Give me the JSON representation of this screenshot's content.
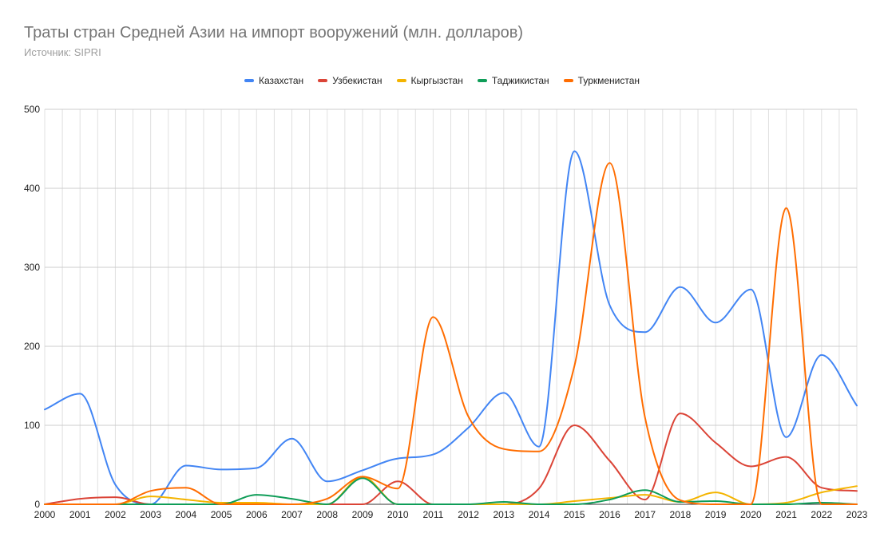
{
  "chart_data": {
    "type": "line",
    "title": "Траты стран Средней Азии на импорт вооружений (млн. долларов)",
    "subtitle": "Источник: SIPRI",
    "xlabel": "",
    "ylabel": "",
    "ylim": [
      0,
      500
    ],
    "yticks": [
      0,
      100,
      200,
      300,
      400,
      500
    ],
    "grid": true,
    "legend_position": "top",
    "categories": [
      "2000",
      "2001",
      "2002",
      "2003",
      "2004",
      "2005",
      "2006",
      "2007",
      "2008",
      "2009",
      "2010",
      "2011",
      "2012",
      "2013",
      "2014",
      "2015",
      "2016",
      "2017",
      "2018",
      "2019",
      "2020",
      "2021",
      "2022",
      "2023"
    ],
    "series": [
      {
        "name": "Казахстан",
        "color": "#4285f4",
        "values": [
          120,
          140,
          25,
          0,
          49,
          44,
          46,
          83,
          29,
          43,
          58,
          63,
          97,
          141,
          73,
          447,
          252,
          218,
          275,
          230,
          272,
          85,
          189,
          125
        ]
      },
      {
        "name": "Узбекистан",
        "color": "#db4437",
        "values": [
          0,
          7,
          9,
          0,
          0,
          0,
          0,
          0,
          0,
          0,
          29,
          0,
          0,
          0,
          20,
          100,
          55,
          6,
          115,
          78,
          48,
          60,
          21,
          17
        ]
      },
      {
        "name": "Кыргызстан",
        "color": "#f4b400",
        "values": [
          0,
          0,
          0,
          10,
          6,
          2,
          2,
          0,
          0,
          35,
          0,
          0,
          0,
          0,
          0,
          4,
          8,
          12,
          3,
          15,
          0,
          2,
          15,
          23
        ]
      },
      {
        "name": "Таджикистан",
        "color": "#0f9d58",
        "values": [
          0,
          0,
          0,
          0,
          0,
          0,
          12,
          7,
          0,
          33,
          0,
          0,
          0,
          3,
          0,
          0,
          6,
          18,
          3,
          4,
          0,
          0,
          2,
          0
        ]
      },
      {
        "name": "Туркменистан",
        "color": "#ff6d01",
        "values": [
          0,
          0,
          0,
          17,
          21,
          0,
          0,
          0,
          7,
          35,
          20,
          237,
          111,
          70,
          67,
          175,
          432,
          110,
          5,
          0,
          0,
          375,
          0,
          0
        ]
      }
    ]
  }
}
